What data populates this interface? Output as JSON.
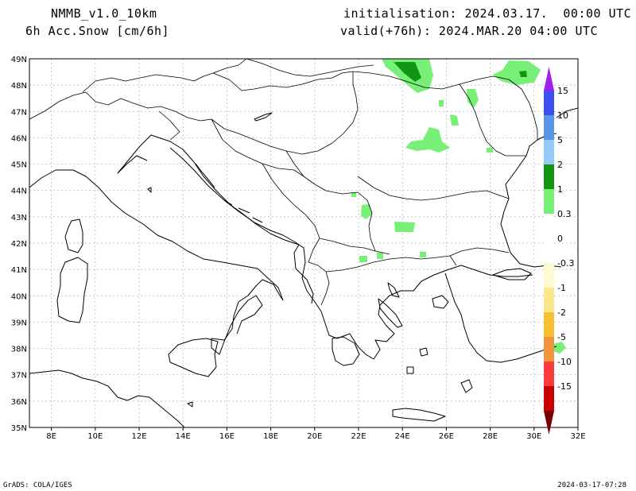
{
  "header": {
    "model": "NMMB_v1.0_10km",
    "variable": "6h Acc.Snow [cm/6h]",
    "init": "initialisation: 2024.03.17.  00:00 UTC",
    "valid": "valid(+76h): 2024.MAR.20 04:00 UTC"
  },
  "footer": {
    "left": "GrADS: COLA/IGES",
    "right": "2024-03-17-07:28"
  },
  "map": {
    "lon_range": [
      7,
      32
    ],
    "lat_range": [
      35,
      49
    ],
    "lon_ticks": [
      "8E",
      "10E",
      "12E",
      "14E",
      "16E",
      "18E",
      "20E",
      "22E",
      "24E",
      "26E",
      "28E",
      "30E",
      "32E"
    ],
    "lat_ticks": [
      "35N",
      "36N",
      "37N",
      "38N",
      "39N",
      "40N",
      "41N",
      "42N",
      "43N",
      "44N",
      "45N",
      "46N",
      "47N",
      "48N",
      "49N"
    ],
    "grid": true
  },
  "colorbar": {
    "labels": [
      "15",
      "10",
      "5",
      "2",
      "1",
      "0.3",
      "0",
      "-0.3",
      "-1",
      "-2",
      "-5",
      "-10",
      "-15"
    ],
    "colors": [
      "#a020f0",
      "#3c50f0",
      "#5a96e6",
      "#96c8fa",
      "#129612",
      "#78f078",
      "#ffffff",
      "#fffad2",
      "#fae68c",
      "#f5c032",
      "#f0963c",
      "#fa3c3c",
      "#c80000",
      "#780000"
    ]
  },
  "snow_colors": {
    "light": "#78f078",
    "medium": "#32c832",
    "heavy": "#129612"
  }
}
